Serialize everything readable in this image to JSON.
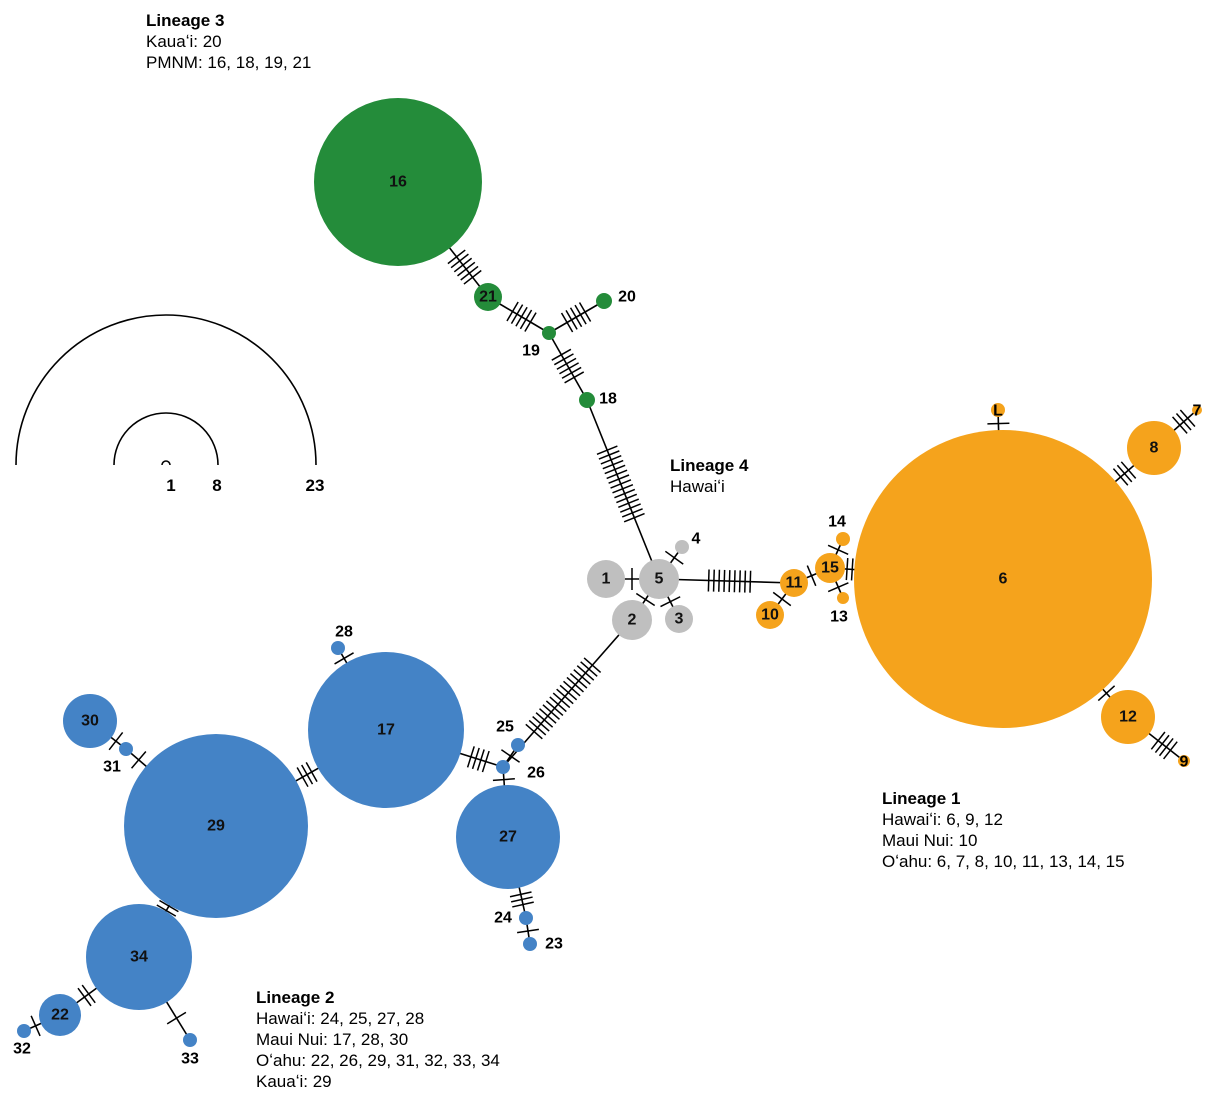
{
  "colors": {
    "lineage1": "#F5A31C",
    "lineage2": "#4483C6",
    "lineage3": "#248C3A",
    "lineage4": "#BFBFBF",
    "edge": "#000000"
  },
  "lineages": [
    {
      "title": "Lineage 3",
      "lines": [
        "Kauaʻi: 20",
        "PMNM: 16, 18, 19, 21"
      ]
    },
    {
      "title": "Lineage 4",
      "lines": [
        "Hawaiʻi"
      ]
    },
    {
      "title": "Lineage 1",
      "lines": [
        "Hawaiʻi: 6, 9, 12",
        "Maui Nui: 10",
        "Oʻahu: 6, 7, 8, 10, 11, 13, 14, 15"
      ]
    },
    {
      "title": "Lineage 2",
      "lines": [
        "Hawaiʻi: 24, 25, 27, 28",
        "Maui Nui: 17, 28, 30",
        "Oʻahu: 22, 26, 29, 31, 32, 33, 34",
        "Kauaʻi: 29"
      ]
    }
  ],
  "scale": {
    "labels": [
      "1",
      "8",
      "23"
    ]
  },
  "haplotypes": [
    {
      "id": "1",
      "group": "lineage4"
    },
    {
      "id": "2",
      "group": "lineage4"
    },
    {
      "id": "3",
      "group": "lineage4"
    },
    {
      "id": "4",
      "group": "lineage4"
    },
    {
      "id": "5",
      "group": "lineage4"
    },
    {
      "id": "6",
      "group": "lineage1"
    },
    {
      "id": "7",
      "group": "lineage1"
    },
    {
      "id": "8",
      "group": "lineage1"
    },
    {
      "id": "9",
      "group": "lineage1"
    },
    {
      "id": "10",
      "group": "lineage1"
    },
    {
      "id": "11",
      "group": "lineage1"
    },
    {
      "id": "12",
      "group": "lineage1"
    },
    {
      "id": "13",
      "group": "lineage1"
    },
    {
      "id": "14",
      "group": "lineage1"
    },
    {
      "id": "15",
      "group": "lineage1"
    },
    {
      "id": "L",
      "group": "lineage1"
    },
    {
      "id": "16",
      "group": "lineage3"
    },
    {
      "id": "18",
      "group": "lineage3"
    },
    {
      "id": "19",
      "group": "lineage3"
    },
    {
      "id": "20",
      "group": "lineage3"
    },
    {
      "id": "21",
      "group": "lineage3"
    },
    {
      "id": "17",
      "group": "lineage2"
    },
    {
      "id": "22",
      "group": "lineage2"
    },
    {
      "id": "23",
      "group": "lineage2"
    },
    {
      "id": "24",
      "group": "lineage2"
    },
    {
      "id": "25",
      "group": "lineage2"
    },
    {
      "id": "26",
      "group": "lineage2"
    },
    {
      "id": "27",
      "group": "lineage2"
    },
    {
      "id": "28",
      "group": "lineage2"
    },
    {
      "id": "29",
      "group": "lineage2"
    },
    {
      "id": "30",
      "group": "lineage2"
    },
    {
      "id": "31",
      "group": "lineage2"
    },
    {
      "id": "32",
      "group": "lineage2"
    },
    {
      "id": "33",
      "group": "lineage2"
    },
    {
      "id": "34",
      "group": "lineage2"
    }
  ],
  "links": [
    {
      "a": "5",
      "b": "1",
      "steps": 1
    },
    {
      "a": "5",
      "b": "2",
      "steps": 1
    },
    {
      "a": "5",
      "b": "3",
      "steps": 1
    },
    {
      "a": "5",
      "b": "4",
      "steps": 1
    },
    {
      "a": "5",
      "b": "18",
      "steps": 15
    },
    {
      "a": "5",
      "b": "11",
      "steps": 9
    },
    {
      "a": "2",
      "b": "26",
      "steps": 18
    },
    {
      "a": "11",
      "b": "10",
      "steps": 1
    },
    {
      "a": "11",
      "b": "15",
      "steps": 1
    },
    {
      "a": "15",
      "b": "6",
      "steps": 2
    },
    {
      "a": "15",
      "b": "14",
      "steps": 1
    },
    {
      "a": "15",
      "b": "13",
      "steps": 1
    },
    {
      "a": "6",
      "b": "L",
      "steps": 1
    },
    {
      "a": "6",
      "b": "8",
      "steps": 3
    },
    {
      "a": "8",
      "b": "7",
      "steps": 3
    },
    {
      "a": "6",
      "b": "12",
      "steps": 1
    },
    {
      "a": "12",
      "b": "9",
      "steps": 4
    },
    {
      "a": "18",
      "b": "19",
      "steps": 6
    },
    {
      "a": "19",
      "b": "20",
      "steps": 5
    },
    {
      "a": "19",
      "b": "21",
      "steps": 5
    },
    {
      "a": "21",
      "b": "16",
      "steps": 6
    },
    {
      "a": "26",
      "b": "17",
      "steps": 4
    },
    {
      "a": "26",
      "b": "25",
      "steps": 1
    },
    {
      "a": "26",
      "b": "27",
      "steps": 1
    },
    {
      "a": "17",
      "b": "28",
      "steps": 1
    },
    {
      "a": "17",
      "b": "29",
      "steps": 3
    },
    {
      "a": "29",
      "b": "31",
      "steps": 1
    },
    {
      "a": "31",
      "b": "30",
      "steps": 1
    },
    {
      "a": "29",
      "b": "34",
      "steps": 2
    },
    {
      "a": "34",
      "b": "22",
      "steps": 2
    },
    {
      "a": "22",
      "b": "32",
      "steps": 1
    },
    {
      "a": "34",
      "b": "33",
      "steps": 1
    },
    {
      "a": "27",
      "b": "24",
      "steps": 3
    },
    {
      "a": "24",
      "b": "23",
      "steps": 1
    }
  ]
}
